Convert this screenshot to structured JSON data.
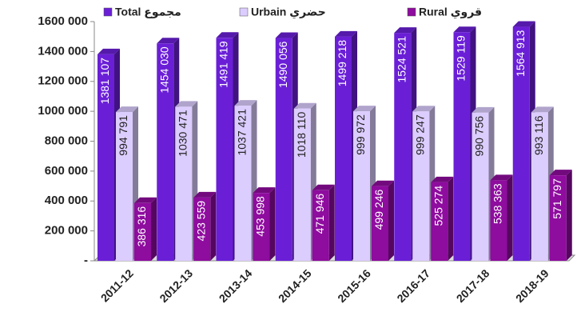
{
  "chart_data": {
    "type": "bar3d",
    "categories": [
      "2011-12",
      "2012-13",
      "2013-14",
      "2014-15",
      "2015-16",
      "2016-17",
      "2017-18",
      "2018-19"
    ],
    "series": [
      {
        "name": "Total مجموع",
        "color": "#6a1fd6",
        "values": [
          1381107,
          1454030,
          1491419,
          1490056,
          1499218,
          1524521,
          1529119,
          1564913
        ],
        "value_labels": [
          "1381 107",
          "1454 030",
          "1491 419",
          "1490 056",
          "1499 218",
          "1524 521",
          "1529 119",
          "1564 913"
        ]
      },
      {
        "name": "Urbain حضري",
        "color": "#dccdff",
        "values": [
          994791,
          1030471,
          1037421,
          1018110,
          999972,
          999247,
          990756,
          993116
        ],
        "value_labels": [
          "994 791",
          "1030 471",
          "1037 421",
          "1018 110",
          "999 972",
          "999 247",
          "990 756",
          "993 116"
        ]
      },
      {
        "name": "Rural قروي",
        "color": "#8e0c9e",
        "values": [
          386316,
          423559,
          453998,
          471946,
          499246,
          525274,
          538363,
          571797
        ],
        "value_labels": [
          "386 316",
          "423 559",
          "453 998",
          "471 946",
          "499 246",
          "525 274",
          "538 363",
          "571 797"
        ]
      }
    ],
    "ylim": [
      0,
      1600000
    ],
    "yticks": [
      {
        "value": 0,
        "label": "-"
      },
      {
        "value": 200000,
        "label": "200 000"
      },
      {
        "value": 400000,
        "label": "400 000"
      },
      {
        "value": 600000,
        "label": "600 000"
      },
      {
        "value": 800000,
        "label": "800 000"
      },
      {
        "value": 1000000,
        "label": "1000 000"
      },
      {
        "value": 1200000,
        "label": "1200 000"
      },
      {
        "value": 1400000,
        "label": "1400 000"
      },
      {
        "value": 1600000,
        "label": "1600 000"
      }
    ],
    "legend": "top"
  }
}
